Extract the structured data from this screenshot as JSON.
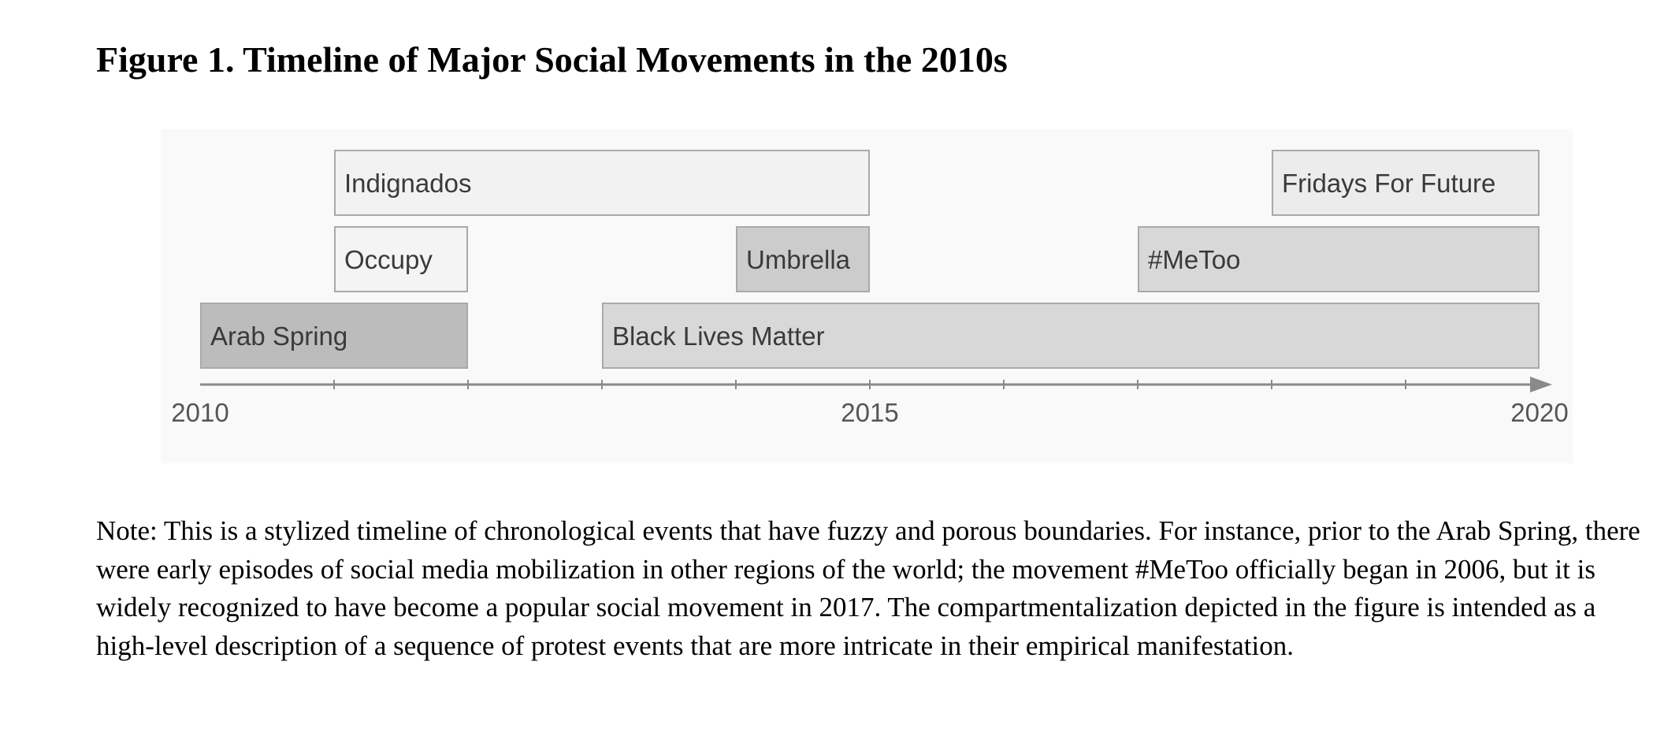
{
  "figure": {
    "title": "Figure 1. Timeline of Major Social Movements in the 2010s",
    "note": "Note: This is a stylized timeline of chronological events that have fuzzy and porous boundaries. For instance, prior to the Arab Spring, there were early episodes of social media mobilization in other regions of the world; the movement #MeToo officially began in 2006, but it is widely recognized to have become a popular social movement in 2017. The compartmentalization depicted in the figure is intended as a high-level description of a sequence of protest events that are more intricate in their empirical manifestation."
  },
  "chart_data": {
    "type": "timeline",
    "xlim": [
      2010,
      2020
    ],
    "tick_labels": [
      "2010",
      "2015",
      "2020"
    ],
    "tick_label_values": [
      2010,
      2015,
      2020
    ],
    "minor_ticks": [
      2011,
      2012,
      2013,
      2014,
      2015,
      2016,
      2017,
      2018,
      2019
    ],
    "bars": [
      {
        "label": "Arab Spring",
        "start": 2010,
        "end": 2012,
        "row": 0,
        "color": "#bcbcbc"
      },
      {
        "label": "Black Lives Matter",
        "start": 2013,
        "end": 2020,
        "row": 0,
        "color": "#d8d8d8"
      },
      {
        "label": "Occupy",
        "start": 2011,
        "end": 2012,
        "row": 1,
        "color": "#f4f4f4"
      },
      {
        "label": "Umbrella",
        "start": 2014,
        "end": 2015,
        "row": 1,
        "color": "#cccccc"
      },
      {
        "label": "#MeToo",
        "start": 2017,
        "end": 2020,
        "row": 1,
        "color": "#d8d8d8"
      },
      {
        "label": "Indignados",
        "start": 2011,
        "end": 2015,
        "row": 2,
        "color": "#f2f2f2"
      },
      {
        "label": "Fridays For Future",
        "start": 2018,
        "end": 2020,
        "row": 2,
        "color": "#ececec"
      }
    ]
  }
}
